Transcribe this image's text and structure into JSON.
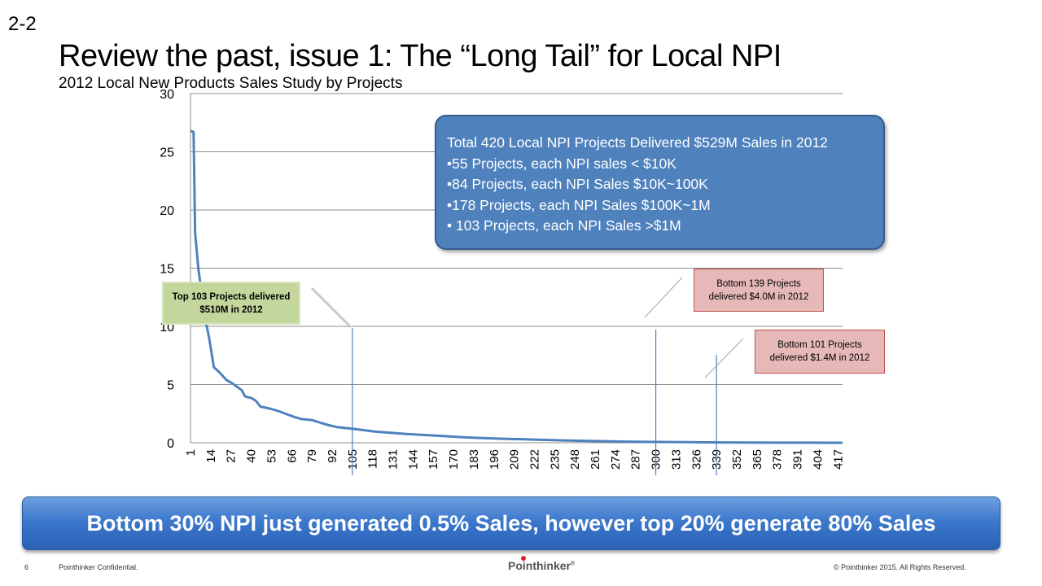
{
  "slide": {
    "number": "2-2",
    "title": "Review the past, issue 1: The “Long Tail” for Local NPI",
    "subtitle": "2012 Local New Products Sales Study by Projects"
  },
  "callouts": {
    "summary": [
      "Total 420 Local NPI Projects Delivered $529M Sales in 2012",
      "•55 Projects, each NPI sales < $10K",
      "•84 Projects, each NPI Sales $10K~100K",
      "•178 Projects, each NPI Sales $100K~1M",
      "• 103 Projects, each NPI Sales >$1M"
    ],
    "top": [
      "Top 103 Projects delivered",
      "$510M in 2012"
    ],
    "bottom139": [
      "Bottom  139 Projects",
      "delivered  $4.0M in 2012"
    ],
    "bottom101": [
      "Bottom 101 Projects",
      "delivered  $1.4M in 2012"
    ]
  },
  "banner": "Bottom 30% NPI just generated 0.5% Sales, however top 20% generate 80% Sales",
  "footer": {
    "page": "6",
    "confidential": "Pointhinker Confidential.",
    "logo": "Pointhinker",
    "logo_mark": "®",
    "copyright": "© Pointhinker   2015. All Rights Reserved."
  },
  "colors": {
    "line": "#4f81bd",
    "summary_box": "#4f81bd",
    "top_box": "#c3d69b",
    "bottom_box": "#e6b9b8",
    "banner": "#3c78cc"
  },
  "chart_data": {
    "type": "line",
    "title": "",
    "xlabel": "",
    "ylabel": "",
    "x_range": [
      1,
      420
    ],
    "ylim": [
      0,
      30
    ],
    "y_ticks": [
      0,
      5,
      10,
      15,
      20,
      25,
      30
    ],
    "x_tick_labels": [
      "1",
      "14",
      "27",
      "40",
      "53",
      "66",
      "79",
      "92",
      "105",
      "118",
      "131",
      "144",
      "157",
      "170",
      "183",
      "196",
      "209",
      "222",
      "235",
      "248",
      "261",
      "274",
      "287",
      "300",
      "313",
      "326",
      "339",
      "352",
      "365",
      "378",
      "391",
      "404",
      "417"
    ],
    "grid": "horizontal",
    "series": [
      {
        "x": [
          1,
          3,
          4,
          6,
          10,
          13,
          16,
          20,
          24,
          28,
          30,
          34,
          36,
          38,
          40,
          43,
          46,
          48,
          53,
          58,
          63,
          68,
          72,
          79,
          85,
          90,
          95,
          105,
          120,
          140,
          160,
          180,
          200,
          220,
          240,
          260,
          280,
          300,
          320,
          340,
          360,
          380,
          400,
          420
        ],
        "y": [
          26.8,
          26.7,
          18,
          15,
          11,
          9,
          6.5,
          6,
          5.4,
          5.1,
          4.9,
          4.5,
          4.0,
          3.9,
          3.85,
          3.6,
          3.1,
          3.05,
          2.9,
          2.7,
          2.45,
          2.2,
          2.05,
          1.95,
          1.7,
          1.5,
          1.35,
          1.2,
          0.95,
          0.75,
          0.6,
          0.45,
          0.35,
          0.28,
          0.2,
          0.15,
          0.1,
          0.07,
          0.05,
          0.03,
          0.02,
          0.01,
          0.005,
          0.0
        ]
      }
    ],
    "markers": [
      105,
      300,
      339
    ]
  }
}
